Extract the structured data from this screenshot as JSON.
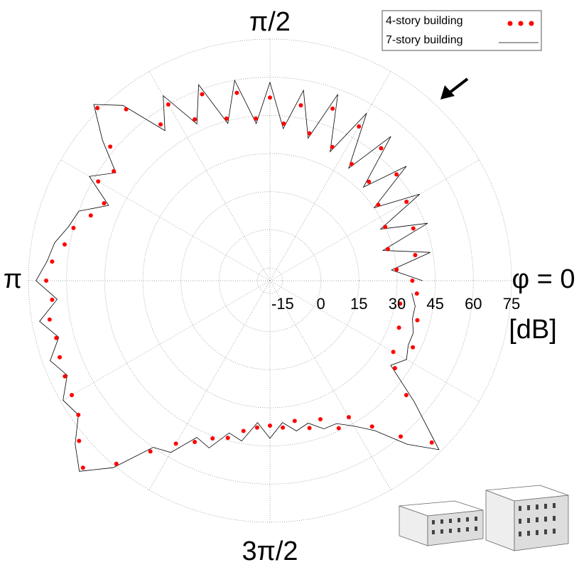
{
  "chart_data": {
    "type": "polar",
    "theta_unit": "degrees",
    "rlim": [
      -20,
      75
    ],
    "rticks": [
      -15,
      0,
      15,
      30,
      45,
      60,
      75
    ],
    "r_label": "[dB]",
    "theta_gridlines": [
      0,
      30,
      60,
      90,
      120,
      150,
      180,
      210,
      240,
      270,
      300,
      330
    ],
    "theta_labels": [
      {
        "value": 0,
        "label": "φ = 0"
      },
      {
        "value": 90,
        "label": "π/2"
      },
      {
        "value": 180,
        "label": "π"
      },
      {
        "value": 270,
        "label": "3π/2"
      }
    ],
    "grid": true,
    "legend": "upper right",
    "theta": [
      0,
      5,
      10,
      15,
      20,
      25,
      30,
      35,
      40,
      45,
      50,
      55,
      60,
      65,
      70,
      75,
      80,
      85,
      90,
      95,
      100,
      105,
      110,
      115,
      120,
      125,
      130,
      135,
      140,
      145,
      150,
      155,
      160,
      165,
      170,
      175,
      180,
      185,
      190,
      195,
      200,
      205,
      210,
      215,
      220,
      225,
      230,
      235,
      240,
      245,
      250,
      255,
      260,
      265,
      270,
      275,
      280,
      285,
      290,
      295,
      300,
      305,
      310,
      315,
      320,
      325,
      330,
      335,
      340,
      345,
      350,
      355
    ],
    "series": [
      {
        "name": "4-story building",
        "color": "#ff0000",
        "style": "dots",
        "values": [
          36,
          30,
          38,
          28,
          40,
          30,
          42,
          32,
          45,
          35,
          48,
          36,
          50,
          38,
          52,
          40,
          50,
          42,
          52,
          44,
          55,
          46,
          58,
          50,
          60,
          55,
          68,
          76,
          62,
          55,
          58,
          52,
          55,
          60,
          62,
          66,
          68,
          66,
          68,
          67,
          68,
          69,
          70,
          72,
          78,
          84,
          74,
          62,
          54,
          50,
          46,
          44,
          40,
          38,
          37,
          38,
          36,
          40,
          38,
          44,
          42,
          50,
          60,
          70,
          50,
          40,
          36,
          42,
          34,
          40,
          32,
          38
        ]
      },
      {
        "name": "7-story building",
        "color": "#000000",
        "style": "line",
        "values": [
          40,
          28,
          44,
          26,
          46,
          28,
          48,
          30,
          50,
          32,
          54,
          34,
          56,
          36,
          58,
          38,
          56,
          40,
          58,
          42,
          60,
          44,
          62,
          48,
          64,
          52,
          70,
          78,
          66,
          54,
          62,
          50,
          60,
          62,
          66,
          68,
          72,
          64,
          72,
          66,
          72,
          68,
          74,
          72,
          80,
          86,
          76,
          60,
          58,
          48,
          50,
          42,
          44,
          36,
          42,
          36,
          40,
          38,
          42,
          42,
          46,
          52,
          64,
          74,
          54,
          38,
          42,
          40,
          40,
          38,
          38,
          36
        ]
      }
    ]
  }
}
